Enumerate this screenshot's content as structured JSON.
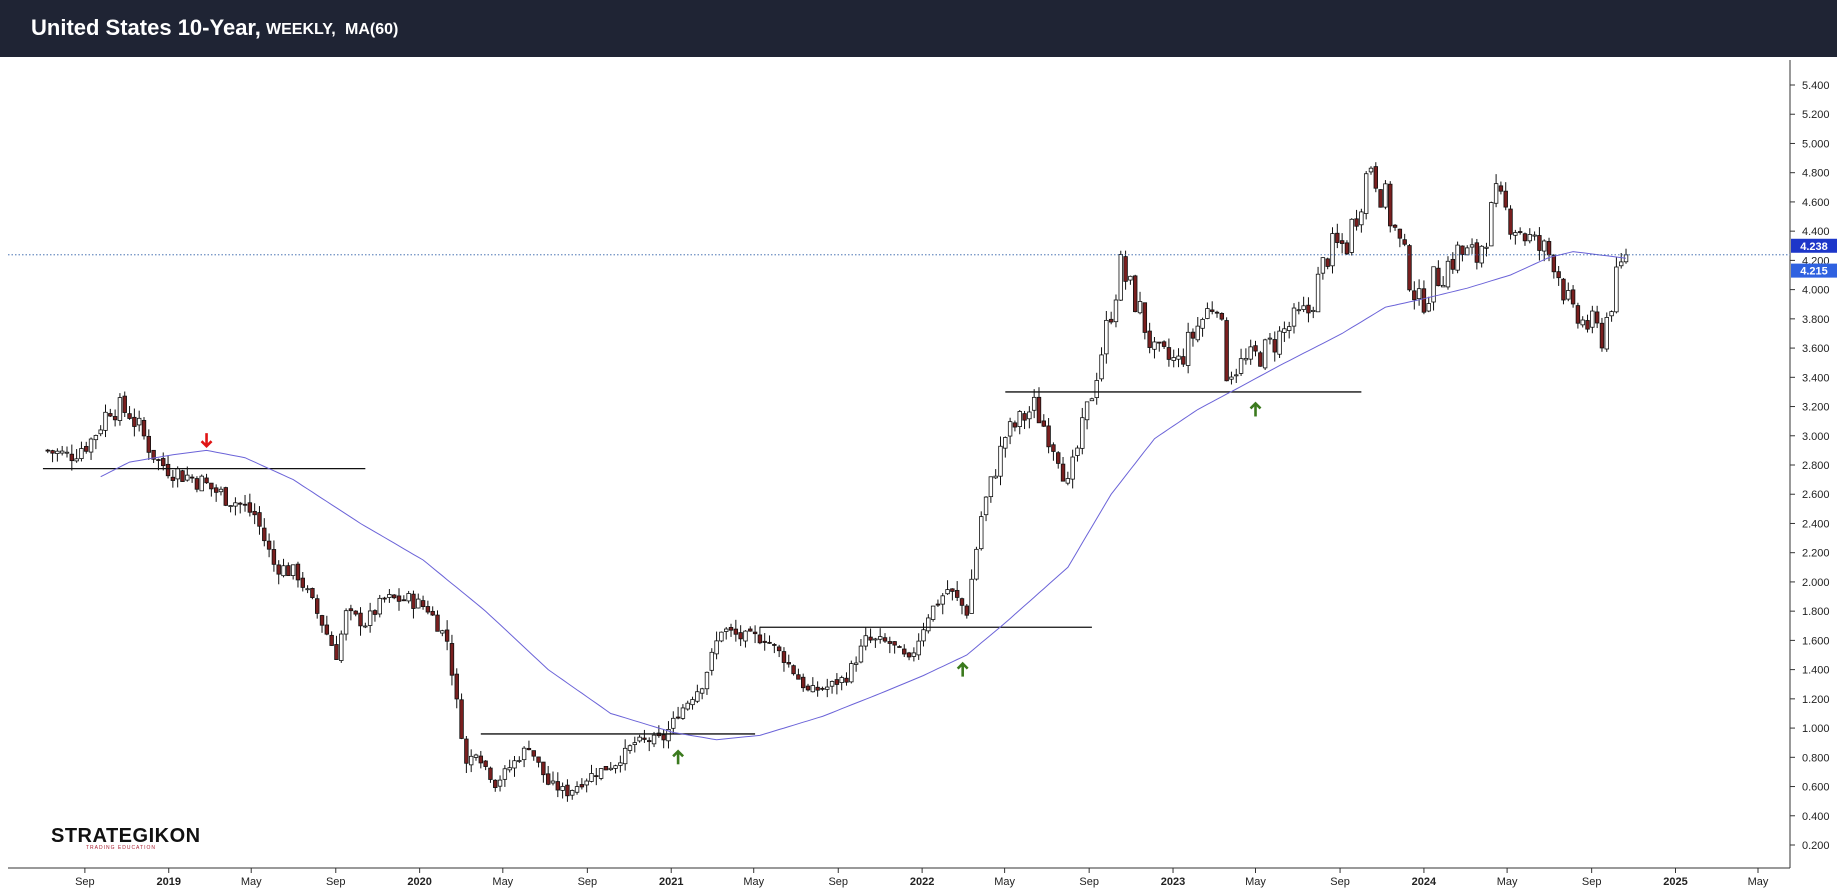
{
  "header": {
    "title": "United States 10-Year,",
    "interval": "WEEKLY,",
    "indicator": "MA(60)"
  },
  "logo": {
    "name": "STRATEGIKON",
    "tagline": "TRADING EDUCATION"
  },
  "colors": {
    "header_bg": "#1f2434",
    "up_body": "#ffffff",
    "down_body": "#7a1f1f",
    "wick": "#111111",
    "ma_line": "#6b63d8",
    "current_line": "#2f5fa8",
    "price_tag": "#1d36c9",
    "ma_tag": "#2f61e0",
    "up_arrow": "#3b7a1e",
    "down_arrow": "#e01414"
  },
  "chart_data": {
    "type": "candlestick",
    "interval": "weekly",
    "indicator": "MA(60)",
    "y_ticks": [
      "0.200",
      "0.400",
      "0.600",
      "0.800",
      "1.000",
      "1.200",
      "1.400",
      "1.600",
      "1.800",
      "2.000",
      "2.200",
      "2.400",
      "2.600",
      "2.800",
      "3.000",
      "3.200",
      "3.400",
      "3.600",
      "3.800",
      "4.000",
      "4.200",
      "4.400",
      "4.600",
      "4.800",
      "5.000",
      "5.200",
      "5.400"
    ],
    "x_ticks": [
      "Sep",
      "2019",
      "May",
      "Sep",
      "2020",
      "May",
      "Sep",
      "2021",
      "May",
      "Sep",
      "2022",
      "May",
      "Sep",
      "2023",
      "May",
      "Sep",
      "2024",
      "May",
      "Sep",
      "2025",
      "May"
    ],
    "x_tick_dates": [
      "2018-09-01",
      "2019-01-01",
      "2019-05-01",
      "2019-09-01",
      "2020-01-01",
      "2020-05-01",
      "2020-09-01",
      "2021-01-01",
      "2021-05-01",
      "2021-09-01",
      "2022-01-01",
      "2022-05-01",
      "2022-09-01",
      "2023-01-01",
      "2023-05-01",
      "2023-09-01",
      "2024-01-01",
      "2024-05-01",
      "2024-09-01",
      "2025-01-01",
      "2025-05-01"
    ],
    "ylim": [
      0.05,
      5.55
    ],
    "price_path": [
      [
        "2018-07-09",
        2.9
      ],
      [
        "2018-08-06",
        2.86
      ],
      [
        "2018-09-10",
        2.97
      ],
      [
        "2018-10-08",
        3.2
      ],
      [
        "2018-11-05",
        3.16
      ],
      [
        "2018-12-17",
        2.82
      ],
      [
        "2019-01-14",
        2.75
      ],
      [
        "2019-02-11",
        2.7
      ],
      [
        "2019-03-11",
        2.62
      ],
      [
        "2019-04-08",
        2.55
      ],
      [
        "2019-05-06",
        2.46
      ],
      [
        "2019-06-03",
        2.12
      ],
      [
        "2019-07-08",
        2.05
      ],
      [
        "2019-08-12",
        1.72
      ],
      [
        "2019-09-02",
        1.5
      ],
      [
        "2019-09-16",
        1.78
      ],
      [
        "2019-10-14",
        1.72
      ],
      [
        "2019-11-11",
        1.88
      ],
      [
        "2019-12-16",
        1.88
      ],
      [
        "2020-01-13",
        1.82
      ],
      [
        "2020-02-10",
        1.6
      ],
      [
        "2020-03-09",
        0.75
      ],
      [
        "2020-03-23",
        0.85
      ],
      [
        "2020-04-20",
        0.62
      ],
      [
        "2020-06-08",
        0.88
      ],
      [
        "2020-07-06",
        0.62
      ],
      [
        "2020-08-03",
        0.56
      ],
      [
        "2020-09-07",
        0.68
      ],
      [
        "2020-10-12",
        0.76
      ],
      [
        "2020-11-09",
        0.9
      ],
      [
        "2020-12-21",
        0.93
      ],
      [
        "2021-01-11",
        1.1
      ],
      [
        "2021-02-15",
        1.3
      ],
      [
        "2021-03-15",
        1.68
      ],
      [
        "2021-04-12",
        1.62
      ],
      [
        "2021-05-17",
        1.62
      ],
      [
        "2021-06-14",
        1.48
      ],
      [
        "2021-07-19",
        1.25
      ],
      [
        "2021-08-16",
        1.28
      ],
      [
        "2021-09-13",
        1.35
      ],
      [
        "2021-10-11",
        1.6
      ],
      [
        "2021-11-15",
        1.58
      ],
      [
        "2021-12-13",
        1.45
      ],
      [
        "2022-01-10",
        1.78
      ],
      [
        "2022-02-07",
        1.95
      ],
      [
        "2022-03-07",
        1.8
      ],
      [
        "2022-03-28",
        2.45
      ],
      [
        "2022-05-02",
        3.0
      ],
      [
        "2022-06-13",
        3.2
      ],
      [
        "2022-07-18",
        2.88
      ],
      [
        "2022-08-01",
        2.65
      ],
      [
        "2022-09-05",
        3.3
      ],
      [
        "2022-10-17",
        4.15
      ],
      [
        "2022-11-14",
        3.85
      ],
      [
        "2022-12-05",
        3.55
      ],
      [
        "2023-01-09",
        3.5
      ],
      [
        "2023-02-06",
        3.75
      ],
      [
        "2023-03-06",
        3.95
      ],
      [
        "2023-03-20",
        3.45
      ],
      [
        "2023-04-17",
        3.5
      ],
      [
        "2023-05-15",
        3.58
      ],
      [
        "2023-06-19",
        3.75
      ],
      [
        "2023-07-17",
        3.85
      ],
      [
        "2023-08-14",
        4.25
      ],
      [
        "2023-09-11",
        4.32
      ],
      [
        "2023-10-16",
        4.88
      ],
      [
        "2023-11-06",
        4.6
      ],
      [
        "2023-12-04",
        4.2
      ],
      [
        "2023-12-25",
        3.9
      ],
      [
        "2024-01-22",
        4.1
      ],
      [
        "2024-02-19",
        4.25
      ],
      [
        "2024-03-18",
        4.22
      ],
      [
        "2024-04-15",
        4.6
      ],
      [
        "2024-05-13",
        4.45
      ],
      [
        "2024-06-10",
        4.3
      ],
      [
        "2024-07-08",
        4.22
      ],
      [
        "2024-08-05",
        3.8
      ],
      [
        "2024-09-02",
        3.75
      ],
      [
        "2024-09-16",
        3.68
      ],
      [
        "2024-10-07",
        4.05
      ],
      [
        "2024-10-21",
        4.238
      ]
    ],
    "ma60_path": [
      [
        "2018-09-24",
        2.72
      ],
      [
        "2018-11-05",
        2.82
      ],
      [
        "2019-01-07",
        2.87
      ],
      [
        "2019-02-25",
        2.9
      ],
      [
        "2019-04-22",
        2.85
      ],
      [
        "2019-07-01",
        2.7
      ],
      [
        "2019-10-07",
        2.4
      ],
      [
        "2020-01-06",
        2.15
      ],
      [
        "2020-04-06",
        1.8
      ],
      [
        "2020-07-06",
        1.4
      ],
      [
        "2020-10-05",
        1.1
      ],
      [
        "2021-01-04",
        0.97
      ],
      [
        "2021-03-08",
        0.92
      ],
      [
        "2021-05-10",
        0.95
      ],
      [
        "2021-08-09",
        1.08
      ],
      [
        "2021-11-08",
        1.25
      ],
      [
        "2022-01-03",
        1.36
      ],
      [
        "2022-03-07",
        1.5
      ],
      [
        "2022-05-02",
        1.72
      ],
      [
        "2022-08-01",
        2.1
      ],
      [
        "2022-10-03",
        2.6
      ],
      [
        "2022-12-05",
        2.98
      ],
      [
        "2023-02-06",
        3.18
      ],
      [
        "2023-04-03",
        3.32
      ],
      [
        "2023-06-05",
        3.48
      ],
      [
        "2023-09-04",
        3.7
      ],
      [
        "2023-11-06",
        3.88
      ],
      [
        "2023-12-25",
        3.93
      ],
      [
        "2024-03-04",
        4.01
      ],
      [
        "2024-05-06",
        4.1
      ],
      [
        "2024-07-01",
        4.22
      ],
      [
        "2024-08-05",
        4.26
      ],
      [
        "2024-10-21",
        4.215
      ]
    ],
    "horizontal_levels": [
      {
        "value": 2.775,
        "from": "2018-07-02",
        "to": "2019-10-14"
      },
      {
        "value": 0.96,
        "from": "2020-03-30",
        "to": "2021-05-03"
      },
      {
        "value": 1.69,
        "from": "2021-05-10",
        "to": "2022-09-05"
      },
      {
        "value": 3.3,
        "from": "2022-05-02",
        "to": "2023-10-02"
      }
    ],
    "arrows": [
      {
        "direction": "down",
        "date": "2019-02-25",
        "value": 2.97,
        "color": "red"
      },
      {
        "direction": "up",
        "date": "2021-01-11",
        "value": 0.8,
        "color": "green"
      },
      {
        "direction": "up",
        "date": "2022-03-01",
        "value": 1.4,
        "color": "green"
      },
      {
        "direction": "up",
        "date": "2023-05-01",
        "value": 3.18,
        "color": "green"
      }
    ],
    "current_price": {
      "label": "4.238",
      "value": 4.238
    },
    "ma_value": {
      "label": "4.215",
      "value": 4.215
    }
  }
}
